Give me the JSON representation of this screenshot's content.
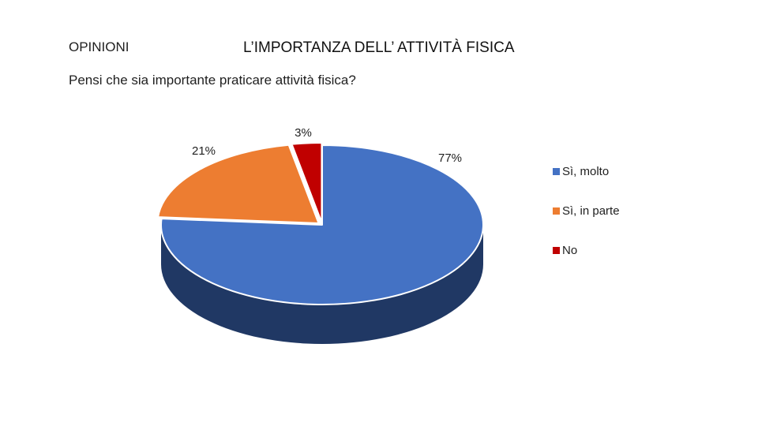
{
  "slide": {
    "section_label": "OPINIONI",
    "title": "L’IMPORTANZA DELL’ ATTIVITÀ FISICA",
    "question": "Pensi che sia importante praticare attività fisica?"
  },
  "chart_data": {
    "type": "pie",
    "style": "3d",
    "title": "",
    "slices": [
      {
        "name": "Sì, molto",
        "value": 77,
        "label": "77%",
        "color": "#4472c4",
        "side_color": "#203864"
      },
      {
        "name": "Sì, in parte",
        "value": 21,
        "label": "21%",
        "color": "#ed7d31",
        "side_color": "#843c0c"
      },
      {
        "name": "No",
        "value": 3,
        "label": "3%",
        "color": "#c00000",
        "side_color": "#600000"
      }
    ],
    "legend_position": "right"
  }
}
